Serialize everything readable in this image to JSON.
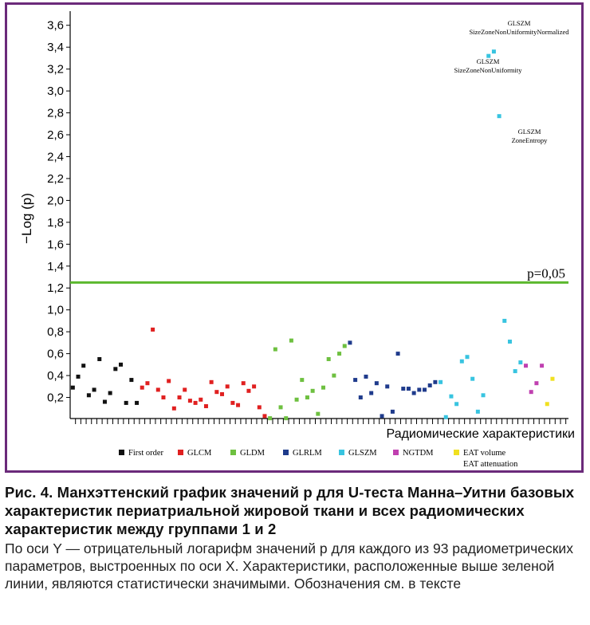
{
  "chart_data": {
    "type": "scatter",
    "xlabel": "Радиомические характеристики",
    "ylabel": "−Log (p)",
    "ylim": [
      0,
      3.7
    ],
    "yticks": [
      {
        "v": 0.2,
        "label": "0,2"
      },
      {
        "v": 0.4,
        "label": "0,4"
      },
      {
        "v": 0.6,
        "label": "0,6"
      },
      {
        "v": 0.8,
        "label": "0,8"
      },
      {
        "v": 1.0,
        "label": "1,0"
      },
      {
        "v": 1.2,
        "label": "1,2"
      },
      {
        "v": 1.4,
        "label": "1,4"
      },
      {
        "v": 1.6,
        "label": "1,6"
      },
      {
        "v": 1.8,
        "label": "1,8"
      },
      {
        "v": 2.0,
        "label": "2,0"
      },
      {
        "v": 2.2,
        "label": "2,2"
      },
      {
        "v": 2.4,
        "label": "2,4"
      },
      {
        "v": 2.6,
        "label": "2,6"
      },
      {
        "v": 2.8,
        "label": "2,8"
      },
      {
        "v": 3.0,
        "label": "3,0"
      },
      {
        "v": 3.2,
        "label": "3,2"
      },
      {
        "v": 3.4,
        "label": "3,4"
      },
      {
        "v": 3.6,
        "label": "3,6"
      }
    ],
    "threshold": {
      "value": 1.25,
      "label": "p=0,05",
      "color": "#5cb82e"
    },
    "x_count": 93,
    "legend": "bottom",
    "series": [
      {
        "name": "First order",
        "color": "#111111",
        "x": [
          1,
          2,
          3,
          4,
          5,
          6,
          7,
          8,
          9,
          10,
          11,
          12,
          13
        ],
        "y": [
          0.29,
          0.39,
          0.49,
          0.22,
          0.27,
          0.55,
          0.16,
          0.24,
          0.46,
          0.5,
          0.15,
          0.36,
          0.15
        ]
      },
      {
        "name": "GLCM",
        "color": "#e02020",
        "x": [
          14,
          15,
          16,
          17,
          18,
          19,
          20,
          21,
          22,
          23,
          24,
          25,
          26,
          27,
          28,
          29,
          30,
          31,
          32,
          33,
          34,
          35,
          36,
          37
        ],
        "y": [
          0.29,
          0.33,
          0.82,
          0.27,
          0.2,
          0.35,
          0.1,
          0.2,
          0.27,
          0.17,
          0.15,
          0.18,
          0.12,
          0.34,
          0.25,
          0.23,
          0.3,
          0.15,
          0.13,
          0.33,
          0.26,
          0.3,
          0.11,
          0.03
        ]
      },
      {
        "name": "GLDM",
        "color": "#6ec040",
        "x": [
          38,
          39,
          40,
          41,
          42,
          43,
          44,
          45,
          46,
          47,
          48,
          49,
          50,
          51,
          52
        ],
        "y": [
          0.01,
          0.64,
          0.11,
          0.01,
          0.72,
          0.18,
          0.36,
          0.2,
          0.26,
          0.05,
          0.29,
          0.55,
          0.4,
          0.6,
          0.67
        ]
      },
      {
        "name": "GLRLM",
        "color": "#1f3b8c",
        "x": [
          53,
          54,
          55,
          56,
          57,
          58,
          59,
          60,
          61,
          62,
          63,
          64,
          65,
          66,
          67,
          68,
          69
        ],
        "y": [
          0.7,
          0.36,
          0.2,
          0.39,
          0.24,
          0.33,
          0.03,
          0.3,
          0.07,
          0.6,
          0.28,
          0.28,
          0.24,
          0.27,
          0.27,
          0.31,
          0.34
        ]
      },
      {
        "name": "GLSZM",
        "color": "#38c4e0",
        "x": [
          70,
          71,
          72,
          73,
          74,
          75,
          76,
          77,
          78,
          79,
          80,
          81,
          82,
          83,
          84,
          85
        ],
        "y": [
          0.34,
          0.02,
          0.21,
          0.14,
          0.53,
          0.57,
          0.37,
          0.07,
          0.22,
          3.32,
          3.36,
          2.77,
          0.9,
          0.71,
          0.44,
          0.52
        ]
      },
      {
        "name": "NGTDM",
        "color": "#c040b0",
        "x": [
          86,
          87,
          88,
          89
        ],
        "y": [
          0.49,
          0.25,
          0.33,
          0.49
        ]
      },
      {
        "name": "EAT volume",
        "color": "#f0e020",
        "x": [
          90,
          91
        ],
        "y": [
          0.14,
          0.37
        ]
      },
      {
        "name": "EAT attenuation",
        "color": "#f0e020",
        "x": [],
        "y": []
      }
    ],
    "annotations": [
      {
        "lines": [
          "GLSZM",
          "SizeZoneNonUniformityNormalized"
        ],
        "x": 80,
        "y": 3.36
      },
      {
        "lines": [
          "GLSZM",
          "SizeZoneNonUniformity"
        ],
        "x": 79,
        "y": 3.32
      },
      {
        "lines": [
          "GLSZM",
          "ZoneEntropy"
        ],
        "x": 81,
        "y": 2.77
      }
    ]
  },
  "caption": {
    "title": "Рис. 4. Манхэттенский график значений p для U-теста Манна–Уитни базовых характеристик периатриальной жировой ткани и всех радиомических характеристик между группами 1 и 2",
    "body": "По оси Y — отрицательный логарифм значений p для каждого из 93 радиометрических параметров, выстроенных по оси X. Характеристики, расположенные выше зеленой линии, являются статистически значимыми. Обозначения см. в тексте"
  }
}
